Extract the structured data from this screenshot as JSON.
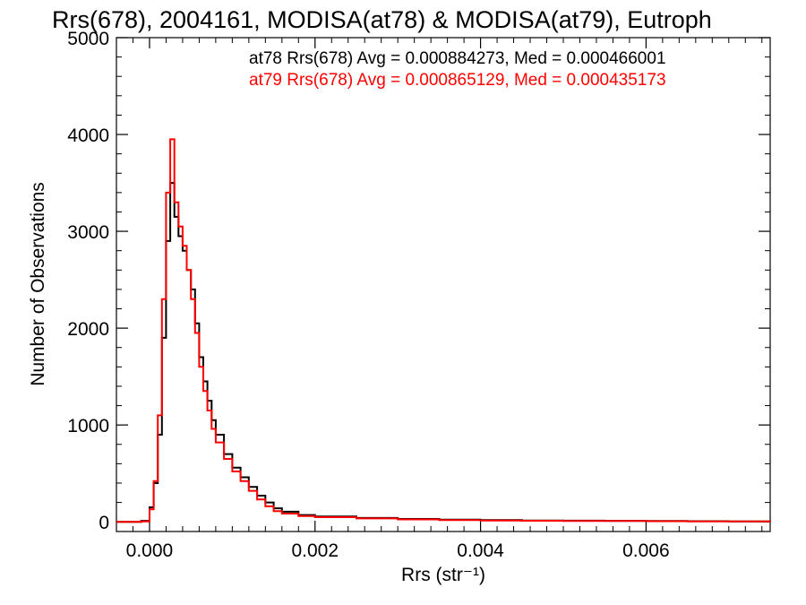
{
  "chart_data": {
    "type": "line",
    "step": true,
    "title": "Rrs(678), 2004161, MODISA(at78) & MODISA(at79), Eutroph",
    "xlabel": "Rrs (str⁻¹)",
    "ylabel": "Number of Observations",
    "xlim": [
      -0.0004,
      0.0075
    ],
    "ylim": [
      -100,
      5000
    ],
    "x_ticks": [
      0.0,
      0.002,
      0.004,
      0.006
    ],
    "x_tick_labels": [
      "0.000",
      "0.002",
      "0.004",
      "0.006"
    ],
    "y_ticks": [
      0,
      1000,
      2000,
      3000,
      4000,
      5000
    ],
    "y_tick_labels": [
      "0",
      "1000",
      "2000",
      "3000",
      "4000",
      "5000"
    ],
    "grid": false,
    "legend_position": "top-right",
    "x": [
      -0.0004,
      -0.0002,
      -0.0001,
      0.0,
      5e-05,
      0.0001,
      0.00015,
      0.0002,
      0.00025,
      0.0003,
      0.00035,
      0.0004,
      0.00045,
      0.0005,
      0.00055,
      0.0006,
      0.00065,
      0.0007,
      0.00075,
      0.0008,
      0.0009,
      0.001,
      0.0011,
      0.0012,
      0.0013,
      0.0014,
      0.0015,
      0.0016,
      0.0018,
      0.002,
      0.0025,
      0.003,
      0.0035,
      0.004,
      0.0045,
      0.005,
      0.0055,
      0.006,
      0.0065,
      0.007,
      0.0075
    ],
    "series": [
      {
        "name": "at78",
        "color": "#000000",
        "stats_text": "at78 Rrs(678) Avg = 0.000884273, Med = 0.000466001",
        "values": [
          0,
          0,
          10,
          150,
          400,
          900,
          1900,
          2900,
          3500,
          3150,
          2950,
          2800,
          2600,
          2400,
          2050,
          1700,
          1450,
          1250,
          1050,
          900,
          700,
          560,
          460,
          360,
          270,
          200,
          140,
          105,
          70,
          55,
          40,
          30,
          22,
          18,
          14,
          12,
          10,
          8,
          6,
          5,
          4
        ]
      },
      {
        "name": "at79",
        "color": "#ff0000",
        "stats_text": "at79 Rrs(678) Avg = 0.000865129, Med = 0.000435173",
        "values": [
          0,
          0,
          5,
          130,
          420,
          1100,
          2300,
          3400,
          3950,
          3300,
          3050,
          2850,
          2600,
          2300,
          1950,
          1600,
          1350,
          1150,
          960,
          820,
          650,
          520,
          420,
          320,
          230,
          160,
          110,
          85,
          60,
          48,
          35,
          25,
          18,
          14,
          11,
          9,
          8,
          6,
          5,
          4,
          3
        ]
      }
    ]
  }
}
